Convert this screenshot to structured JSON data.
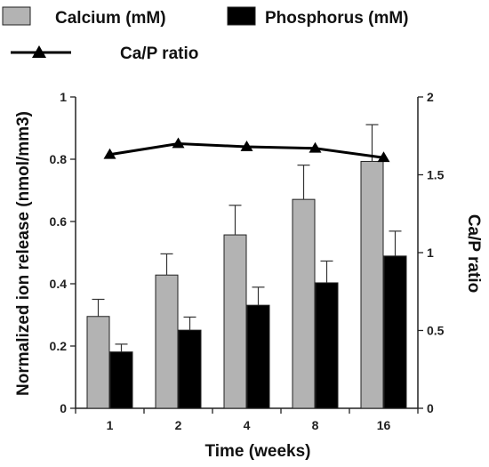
{
  "chart_data": {
    "type": "bar",
    "title": "",
    "xlabel": "Time (weeks)",
    "ylabel": "Normalized ion release (nmol/mm3)",
    "y2label": "Ca/P ratio",
    "categories": [
      "1",
      "2",
      "4",
      "8",
      "16"
    ],
    "ylim": [
      0,
      1
    ],
    "yticks": [
      "0",
      "0.2",
      "0.4",
      "0.6",
      "0.8",
      "1"
    ],
    "y2lim": [
      0,
      2
    ],
    "y2ticks": [
      "0",
      "0.5",
      "1",
      "1.5",
      "2"
    ],
    "grid": false,
    "legend_position": "top-left",
    "series": [
      {
        "name": "Calcium (mM)",
        "kind": "bar",
        "axis": "left",
        "color": "#b3b3b3",
        "values": [
          0.295,
          0.428,
          0.557,
          0.671,
          0.793
        ],
        "errors": [
          0.055,
          0.068,
          0.095,
          0.11,
          0.118
        ]
      },
      {
        "name": "Phosphorus (mM)",
        "kind": "bar",
        "axis": "left",
        "color": "#000000",
        "values": [
          0.181,
          0.251,
          0.331,
          0.403,
          0.489
        ],
        "errors": [
          0.025,
          0.042,
          0.058,
          0.07,
          0.08
        ]
      },
      {
        "name": "Ca/P ratio",
        "kind": "line",
        "axis": "right",
        "color": "#000000",
        "marker": "triangle",
        "values": [
          1.63,
          1.7,
          1.68,
          1.67,
          1.61
        ]
      }
    ]
  }
}
